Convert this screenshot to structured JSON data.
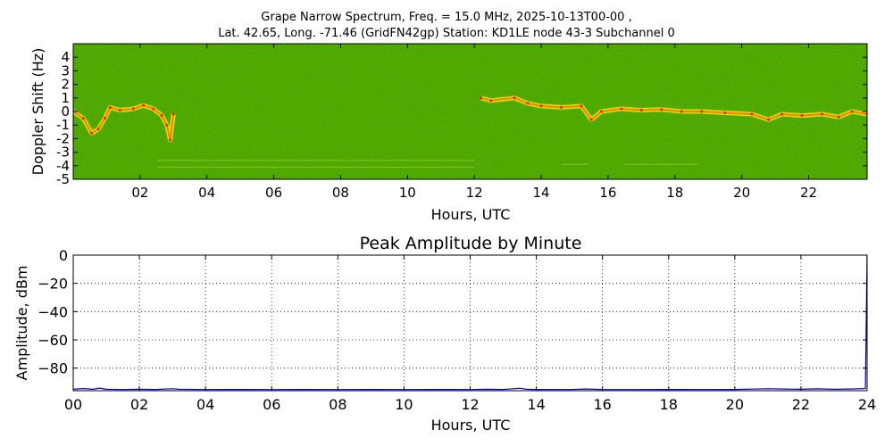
{
  "figure": {
    "title_line1": "Grape Narrow Spectrum, Freq. = 15.0 MHz, 2025-10-13T00-00 ,",
    "title_line2": "Lat.  42.65, Long. -71.46 (GridFN42gp) Station: KD1LE node 43-3 Subchannel 0"
  },
  "chart_data": [
    {
      "type": "heatmap",
      "title": "",
      "xlabel": "Hours, UTC",
      "ylabel": "Doppler Shift (Hz)",
      "xlim": [
        0,
        23.75
      ],
      "ylim": [
        -5,
        5
      ],
      "x_ticks": [
        "02",
        "04",
        "06",
        "08",
        "10",
        "12",
        "14",
        "16",
        "18",
        "20",
        "22"
      ],
      "x_tick_values": [
        2,
        4,
        6,
        8,
        10,
        12,
        14,
        16,
        18,
        20,
        22
      ],
      "y_ticks": [
        "4",
        "3",
        "2",
        "1",
        "0",
        "-1",
        "-2",
        "-3",
        "-4",
        "-5"
      ],
      "y_tick_values": [
        4,
        3,
        2,
        1,
        0,
        -1,
        -2,
        -3,
        -4,
        -5
      ],
      "background_color": "#3a8a00",
      "trace_colors": [
        "#f5e800",
        "#ff6a00",
        "#e61a00"
      ],
      "doppler_trace": [
        {
          "x": 0.0,
          "y": 0.0
        },
        {
          "x": 0.3,
          "y": -0.5
        },
        {
          "x": 0.55,
          "y": -1.6
        },
        {
          "x": 0.75,
          "y": -1.3
        },
        {
          "x": 0.95,
          "y": -0.5
        },
        {
          "x": 1.1,
          "y": 0.3
        },
        {
          "x": 1.4,
          "y": 0.1
        },
        {
          "x": 1.8,
          "y": 0.2
        },
        {
          "x": 2.1,
          "y": 0.45
        },
        {
          "x": 2.4,
          "y": 0.2
        },
        {
          "x": 2.65,
          "y": -0.3
        },
        {
          "x": 2.8,
          "y": -1.0
        },
        {
          "x": 2.9,
          "y": -2.1
        },
        {
          "x": 3.0,
          "y": -0.2
        },
        {
          "x": 12.2,
          "y": 1.0
        },
        {
          "x": 12.5,
          "y": 0.8
        },
        {
          "x": 13.2,
          "y": 1.0
        },
        {
          "x": 13.6,
          "y": 0.6
        },
        {
          "x": 14.0,
          "y": 0.4
        },
        {
          "x": 14.6,
          "y": 0.3
        },
        {
          "x": 15.2,
          "y": 0.4
        },
        {
          "x": 15.5,
          "y": -0.6
        },
        {
          "x": 15.8,
          "y": 0.0
        },
        {
          "x": 16.4,
          "y": 0.2
        },
        {
          "x": 17.0,
          "y": 0.1
        },
        {
          "x": 17.6,
          "y": 0.15
        },
        {
          "x": 18.2,
          "y": 0.0
        },
        {
          "x": 18.8,
          "y": 0.0
        },
        {
          "x": 19.5,
          "y": -0.1
        },
        {
          "x": 20.3,
          "y": -0.2
        },
        {
          "x": 20.8,
          "y": -0.6
        },
        {
          "x": 21.2,
          "y": -0.2
        },
        {
          "x": 21.8,
          "y": -0.3
        },
        {
          "x": 22.4,
          "y": -0.2
        },
        {
          "x": 22.9,
          "y": -0.4
        },
        {
          "x": 23.3,
          "y": 0.0
        },
        {
          "x": 23.75,
          "y": -0.2
        }
      ]
    },
    {
      "type": "line",
      "title": "Peak Amplitude by Minute",
      "xlabel": "Hours, UTC",
      "ylabel": "Amplitude, dBm",
      "xlim": [
        0,
        24
      ],
      "ylim": [
        -96,
        0
      ],
      "grid": true,
      "x_ticks": [
        "00",
        "02",
        "04",
        "06",
        "08",
        "10",
        "12",
        "14",
        "16",
        "18",
        "20",
        "22",
        "24"
      ],
      "x_tick_values": [
        0,
        2,
        4,
        6,
        8,
        10,
        12,
        14,
        16,
        18,
        20,
        22,
        24
      ],
      "y_ticks": [
        "0",
        "−20",
        "−40",
        "−60",
        "−80"
      ],
      "y_tick_values": [
        0,
        -20,
        -40,
        -60,
        -80
      ],
      "series": [
        {
          "color": "#0000cc",
          "x": [
            0.0,
            0.3,
            0.6,
            0.8,
            1.0,
            1.5,
            2.0,
            2.5,
            3.0,
            3.2,
            4.0,
            5.0,
            6.0,
            7.0,
            8.0,
            9.0,
            10.0,
            11.0,
            12.0,
            12.5,
            13.0,
            13.5,
            13.7,
            14.0,
            15.0,
            15.5,
            16.0,
            17.0,
            18.0,
            19.0,
            20.0,
            21.0,
            21.5,
            22.0,
            22.5,
            23.0,
            23.5,
            23.95,
            24.0
          ],
          "y": [
            -95,
            -94.5,
            -95,
            -94.2,
            -95,
            -95.2,
            -95,
            -95.1,
            -94.6,
            -95,
            -95.2,
            -95.1,
            -95.2,
            -95.1,
            -95.2,
            -95.1,
            -95.2,
            -95.1,
            -95.2,
            -95,
            -95.1,
            -94.3,
            -95,
            -95.1,
            -95.2,
            -94.8,
            -95.1,
            -95.2,
            -95.1,
            -95.2,
            -95.1,
            -94.6,
            -94.8,
            -95,
            -94.7,
            -95,
            -94.8,
            -94.5,
            0
          ]
        }
      ]
    }
  ]
}
